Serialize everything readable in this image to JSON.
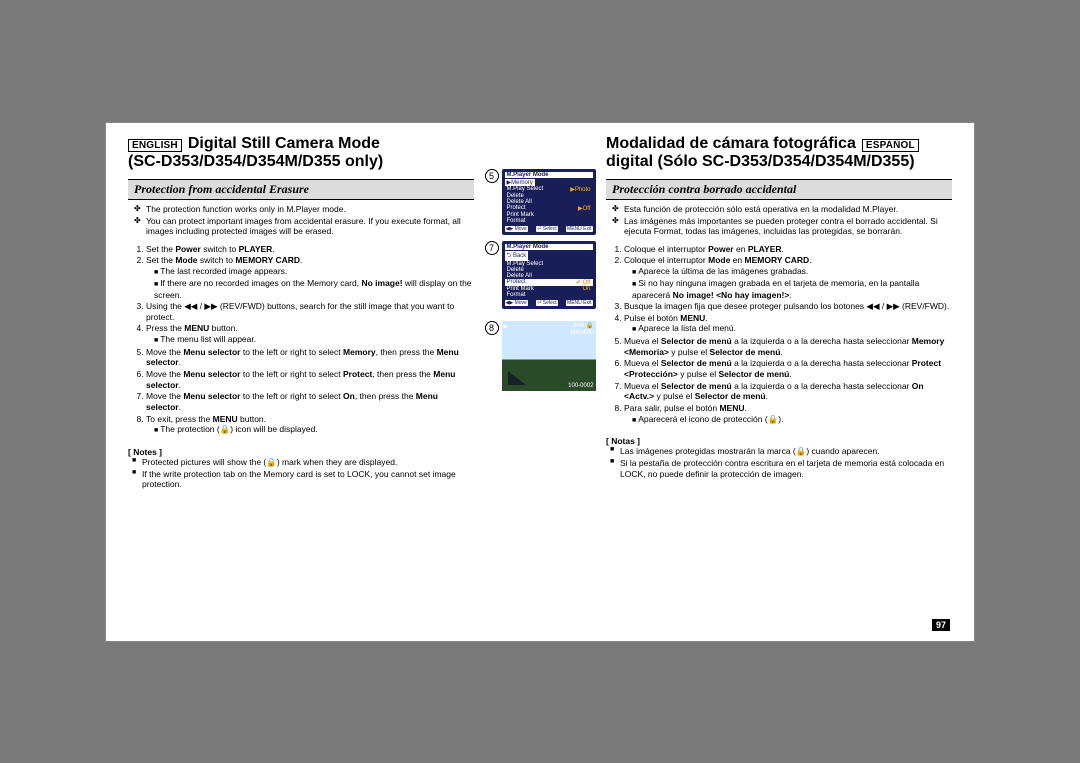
{
  "left": {
    "lang": "ENGLISH",
    "title1": "Digital Still Camera Mode",
    "title2": "(SC-D353/D354/D354M/D355 only)",
    "section": "Protection from accidental Erasure",
    "bullets": [
      "The protection function works only in M.Player mode.",
      "You can protect important images from accidental erasure. If you execute format, all images including protected images will be erased."
    ],
    "steps_html": [
      "Set the <b>Power</b> switch to <b>PLAYER</b>.",
      "Set the <b>Mode</b> switch to <b>MEMORY CARD</b>.<ul><li>The last recorded image appears.</li><li>If there are no recorded images on the Memory card, <b>No image!</b> will display on the screen.</li></ul>",
      "Using the ◀◀ / ▶▶ (REV/FWD) buttons, search for the still image that you want to protect.",
      "Press the <b>MENU</b> button.<ul><li>The menu list will appear.</li></ul>",
      "Move the <b>Menu selector</b> to the left or right to select <b>Memory</b>, then press the <b>Menu selector</b>.",
      "Move the <b>Menu selector</b> to the left or right to select <b>Protect</b>, then press the <b>Menu selector</b>.",
      "Move the <b>Menu selector</b> to the left or right to select <b>On</b>, then press the <b>Menu selector</b>.",
      "To exit, press the <b>MENU</b> button.<ul><li>The protection (🔒) icon will be displayed.</li></ul>"
    ],
    "notes_hdr": "[ Notes ]",
    "notes": [
      "Protected pictures will show the (🔒) mark when they are displayed.",
      "If the write protection tab on the Memory card is set to LOCK, you cannot set image protection."
    ]
  },
  "right": {
    "lang": "ESPAÑOL",
    "title1": "Modalidad de cámara fotográfica",
    "title2": "digital (Sólo SC-D353/D354/D354M/D355)",
    "section": "Protección contra borrado accidental",
    "bullets": [
      "Esta función de protección sólo está operativa en la modalidad M.Player.",
      "Las imágenes más importantes se pueden proteger contra el borrado accidental. Si ejecuta Format, todas las imágenes, incluidas las protegidas, se borrarán."
    ],
    "steps_html": [
      "Coloque el interruptor <b>Power</b> en <b>PLAYER</b>.",
      "Coloque el interruptor <b>Mode</b> en <b>MEMORY CARD</b>.<ul><li>Aparece la última de las imágenes grabadas.</li><li>Si no hay ninguna imagen grabada en el tarjeta de memoria, en la pantalla aparecerá <b>No image! &lt;No hay imagen!&gt;</b>.</li></ul>",
      "Busque la imagen fija que desee proteger pulsando los botones ◀◀ / ▶▶ (REV/FWD).",
      "Pulse el botón <b>MENU</b>.<ul><li>Aparece la lista del menú.</li></ul>",
      "Mueva el <b>Selector de menú</b> a la izquierda o a la derecha hasta seleccionar <b>Memory &lt;Memoria&gt;</b> y pulse el <b>Selector de menú</b>.",
      "Mueva el <b>Selector de menú</b> a la izquierda o a la derecha hasta seleccionar <b>Protect &lt;Protección&gt;</b> y pulse el <b>Selector de menú</b>.",
      "Mueva el <b>Selector de menú</b> a la izquierda o a la derecha hasta seleccionar <b>On &lt;Actv.&gt;</b> y pulse el <b>Selector de menú</b>.",
      "Para salir, pulse el botón <b>MENU</b>.<ul><li>Aparecerá el icono de protección (🔒).</li></ul>"
    ],
    "notes_hdr": "[ Notas ]",
    "notes": [
      "Las imágenes protegidas mostrarán la marca (🔒) cuando aparecen.",
      "Si la pestaña de protección contra escritura en el tarjeta de memoria está colocada en LOCK, no puede definir la protección de imagen."
    ]
  },
  "figs": {
    "n5": "5",
    "n7": "7",
    "n8": "8",
    "lcd1": {
      "title": "M.Player Mode",
      "hl": "▶Memory",
      "rows": [
        [
          "M.Play Select",
          "▶Photo"
        ],
        [
          "Delete",
          ""
        ],
        [
          "Delete All",
          ""
        ],
        [
          "Protect",
          "▶Off"
        ],
        [
          "Print Mark",
          ""
        ],
        [
          "Format",
          ""
        ]
      ],
      "foot": [
        "◀▶ Move",
        "⏎ Select",
        "MENU Exit"
      ]
    },
    "lcd2": {
      "title": "M.Player Mode",
      "back": "⮌ Back",
      "rows": [
        [
          "M.Play Select",
          ""
        ],
        [
          "Delete",
          ""
        ],
        [
          "Delete All",
          ""
        ]
      ],
      "protect": [
        "Protect",
        "✔ Off"
      ],
      "after": [
        [
          "Print Mark",
          "On"
        ],
        [
          "Format",
          ""
        ]
      ],
      "foot": [
        "◀▶ Move",
        "⏎ Select",
        "MENU Exit"
      ]
    },
    "photo": {
      "tl": "▶",
      "tr1": "2/46 🔒",
      "tr2": "800x600",
      "br": "100-0002"
    }
  },
  "colors": {
    "lcd_bg": "#1a1e58",
    "lcd_highlight": "#ffffff",
    "lcd_sel": "#f7b500",
    "section_bg": "#dcdcdc"
  },
  "page_number": "97"
}
